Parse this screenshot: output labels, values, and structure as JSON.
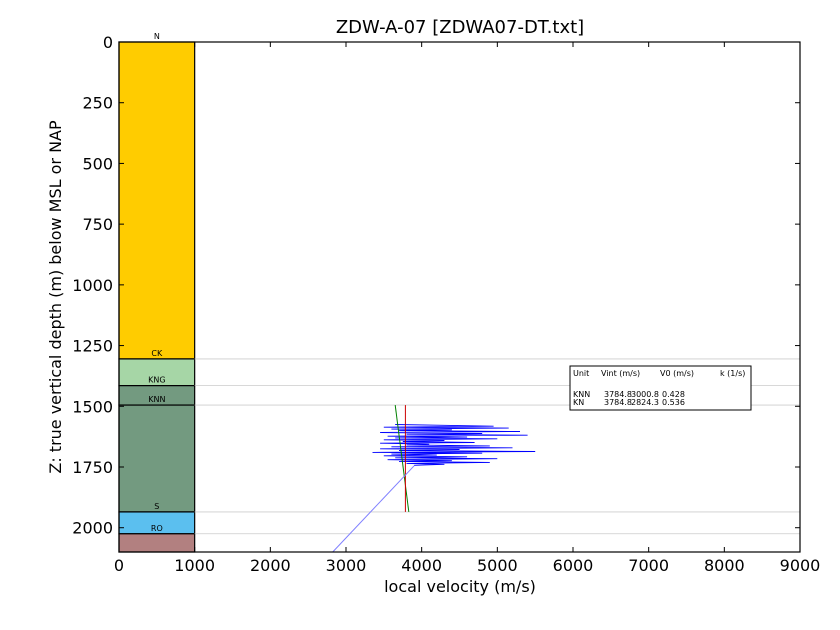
{
  "chart_data": {
    "type": "line",
    "title": "ZDW-A-07 [ZDWA07-DT.txt]",
    "xlabel": "local velocity (m/s)",
    "ylabel": "Z: true vertical depth (m) below MSL or NAP",
    "xlim": [
      0,
      9000
    ],
    "ylim": [
      2100,
      0
    ],
    "x_ticks": [
      0,
      1000,
      2000,
      3000,
      4000,
      5000,
      6000,
      7000,
      8000,
      9000
    ],
    "y_ticks": [
      0,
      250,
      500,
      750,
      1000,
      1250,
      1500,
      1750,
      2000
    ],
    "units": [
      {
        "label": "N",
        "top": 0,
        "bottom": 1305,
        "color": "#ffcc00"
      },
      {
        "label": "CK",
        "top": 1305,
        "bottom": 1415,
        "color": "#a6d6a6"
      },
      {
        "label": "KNG",
        "top": 1415,
        "bottom": 1495,
        "color": "#739a80"
      },
      {
        "label": "KNN",
        "top": 1495,
        "bottom": 1935,
        "color": "#739a80"
      },
      {
        "label": "S",
        "top": 1935,
        "bottom": 2025,
        "color": "#5bbfef"
      },
      {
        "label": "RO",
        "top": 2025,
        "bottom": 2100,
        "color": "#b28080"
      }
    ],
    "boundaries": [
      1305,
      1415,
      1495,
      1935,
      2025
    ],
    "legend": {
      "header": [
        "Unit",
        "Vint (m/s)",
        "V0 (m/s)",
        "k (1/s)"
      ],
      "rows": [
        [
          "KNN",
          "3784.8",
          "3000.8",
          "0.428"
        ],
        [
          "KN",
          "3784.8",
          "2824.3",
          "0.536"
        ]
      ]
    },
    "series": [
      {
        "color": "#0000ff",
        "points": [
          [
            3650,
            1575
          ],
          [
            4200,
            1578
          ],
          [
            4950,
            1582
          ],
          [
            3500,
            1586
          ],
          [
            5150,
            1590
          ],
          [
            3600,
            1594
          ],
          [
            4400,
            1597
          ],
          [
            3700,
            1600
          ],
          [
            5300,
            1604
          ],
          [
            3450,
            1608
          ],
          [
            4800,
            1612
          ],
          [
            3800,
            1615
          ],
          [
            5400,
            1619
          ],
          [
            3550,
            1623
          ],
          [
            4600,
            1627
          ],
          [
            3650,
            1630
          ],
          [
            5000,
            1634
          ],
          [
            3500,
            1638
          ],
          [
            4300,
            1641
          ],
          [
            3750,
            1645
          ],
          [
            4700,
            1649
          ],
          [
            3450,
            1652
          ],
          [
            4100,
            1656
          ],
          [
            3800,
            1659
          ],
          [
            4900,
            1663
          ],
          [
            3600,
            1667
          ],
          [
            5200,
            1671
          ],
          [
            3450,
            1675
          ],
          [
            4500,
            1678
          ],
          [
            3700,
            1682
          ],
          [
            5500,
            1686
          ],
          [
            3350,
            1690
          ],
          [
            4800,
            1693
          ],
          [
            3600,
            1697
          ],
          [
            4200,
            1701
          ],
          [
            3500,
            1704
          ],
          [
            4600,
            1708
          ],
          [
            3650,
            1712
          ],
          [
            5000,
            1716
          ],
          [
            3550,
            1720
          ],
          [
            4400,
            1724
          ],
          [
            3700,
            1727
          ],
          [
            4900,
            1731
          ],
          [
            3800,
            1735
          ],
          [
            4300,
            1739
          ],
          [
            3900,
            1743
          ]
        ]
      },
      {
        "color": "#008000",
        "points": [
          [
            3650,
            1495
          ],
          [
            3830,
            1935
          ]
        ]
      },
      {
        "color": "#cc0000",
        "points": [
          [
            3784.8,
            1495
          ],
          [
            3784.8,
            1935
          ]
        ]
      },
      {
        "color": "#8080ff",
        "points": [
          [
            2824.3,
            2100
          ],
          [
            3900,
            1745
          ]
        ]
      }
    ]
  }
}
